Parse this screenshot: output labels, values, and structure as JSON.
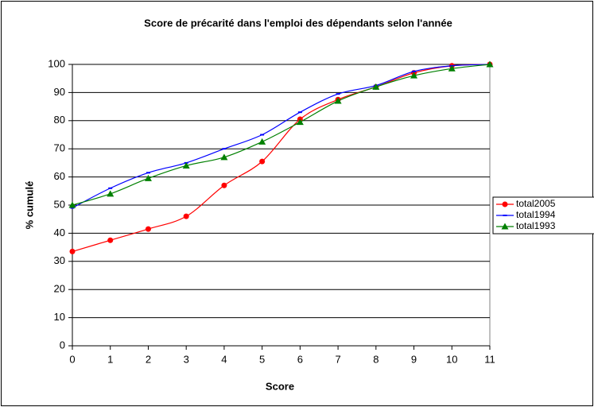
{
  "chart_data": {
    "type": "line",
    "title": "Score de précarité dans l'emploi des dépendants selon l'année",
    "x_label": "Score",
    "y_label": "% cumulé",
    "x": [
      0,
      1,
      2,
      3,
      4,
      5,
      6,
      7,
      8,
      9,
      10,
      11
    ],
    "xlim": [
      0,
      11
    ],
    "xticks": [
      0,
      1,
      2,
      3,
      4,
      5,
      6,
      7,
      8,
      9,
      10,
      11
    ],
    "ylim": [
      0,
      100
    ],
    "yticks": [
      0,
      10,
      20,
      30,
      40,
      50,
      60,
      70,
      80,
      90,
      100
    ],
    "grid": true,
    "legend": "right",
    "series": [
      {
        "name": "total2005",
        "color": "#ff0000",
        "marker": "circle",
        "values": [
          33.5,
          37.5,
          41.5,
          46,
          57,
          65.5,
          80.5,
          87.5,
          92,
          97,
          99.5,
          100
        ]
      },
      {
        "name": "total1994",
        "color": "#0000ff",
        "marker": "dash",
        "values": [
          49,
          56,
          61.5,
          65,
          70,
          75,
          83,
          89.5,
          92.5,
          97.5,
          99.5,
          100
        ]
      },
      {
        "name": "total1993",
        "color": "#008000",
        "marker": "triangle",
        "values": [
          50,
          54,
          59.5,
          64,
          67,
          72.5,
          79.5,
          87,
          92,
          96,
          98.5,
          100
        ]
      }
    ]
  }
}
